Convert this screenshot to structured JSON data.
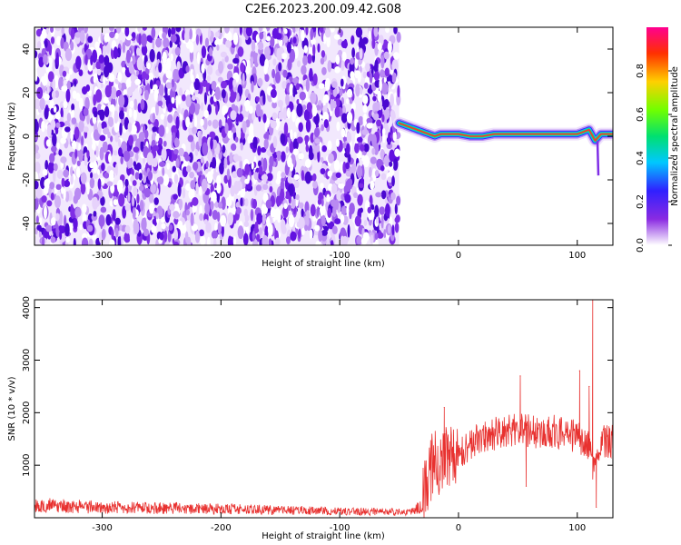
{
  "title": "C2E6.2023.200.09.42.G08",
  "chart_data": [
    {
      "type": "heatmap",
      "xlabel": "Height of straight line (km)",
      "ylabel": "Frequency (Hz)",
      "xlim": [
        -357,
        130
      ],
      "ylim": [
        -50,
        50
      ],
      "xticks": [
        -300,
        -200,
        -100,
        0,
        100
      ],
      "yticks": [
        -40,
        -20,
        0,
        20,
        40
      ],
      "noise_region_x": [
        -357,
        -50
      ],
      "signal_trace": {
        "x": [
          -50,
          -45,
          -40,
          -35,
          -30,
          -25,
          -20,
          -15,
          -10,
          -5,
          0,
          10,
          20,
          30,
          40,
          50,
          60,
          70,
          80,
          90,
          100,
          105,
          110,
          112,
          115,
          120,
          130
        ],
        "y": [
          6,
          5,
          4,
          3,
          2,
          1,
          0,
          1,
          1,
          1,
          1,
          0,
          0,
          1,
          1,
          1,
          1,
          1,
          1,
          1,
          1,
          2,
          3,
          1,
          -2,
          1,
          1
        ]
      },
      "colorbar": {
        "label": "Normalized spectral amplitude",
        "ticks": [
          0.0,
          0.2,
          0.4,
          0.6,
          0.8
        ],
        "range": [
          0,
          1
        ]
      },
      "grid": false
    },
    {
      "type": "line",
      "xlabel": "Height of straight line (km)",
      "ylabel": "SNR (10 * v/v)",
      "xlim": [
        -357,
        130
      ],
      "ylim": [
        0,
        4150
      ],
      "xticks": [
        -300,
        -200,
        -100,
        0,
        100
      ],
      "yticks": [
        1000,
        2000,
        3000,
        4000
      ],
      "color": "#e8312f",
      "envelope": {
        "x": [
          -357,
          -340,
          -320,
          -300,
          -280,
          -260,
          -240,
          -220,
          -200,
          -180,
          -160,
          -140,
          -120,
          -100,
          -80,
          -60,
          -40,
          -30,
          -25,
          -20,
          -15,
          -10,
          -5,
          0,
          10,
          20,
          30,
          40,
          50,
          60,
          70,
          80,
          90,
          100,
          105,
          110,
          112,
          115,
          120,
          130
        ],
        "y": [
          250,
          260,
          240,
          220,
          215,
          205,
          200,
          195,
          185,
          175,
          165,
          160,
          150,
          140,
          130,
          125,
          120,
          300,
          900,
          1000,
          1100,
          1150,
          1200,
          1250,
          1400,
          1550,
          1600,
          1650,
          1700,
          1650,
          1600,
          1650,
          1600,
          1550,
          1500,
          1400,
          1000,
          900,
          1450,
          1450
        ]
      },
      "spikes": [
        {
          "x": -12,
          "y": 2100
        },
        {
          "x": 52,
          "y": 2700
        },
        {
          "x": 57,
          "y": 600
        },
        {
          "x": 102,
          "y": 2800
        },
        {
          "x": 110,
          "y": 2500
        },
        {
          "x": 113,
          "y": 4150
        },
        {
          "x": 116,
          "y": 200
        }
      ],
      "grid": false
    }
  ]
}
